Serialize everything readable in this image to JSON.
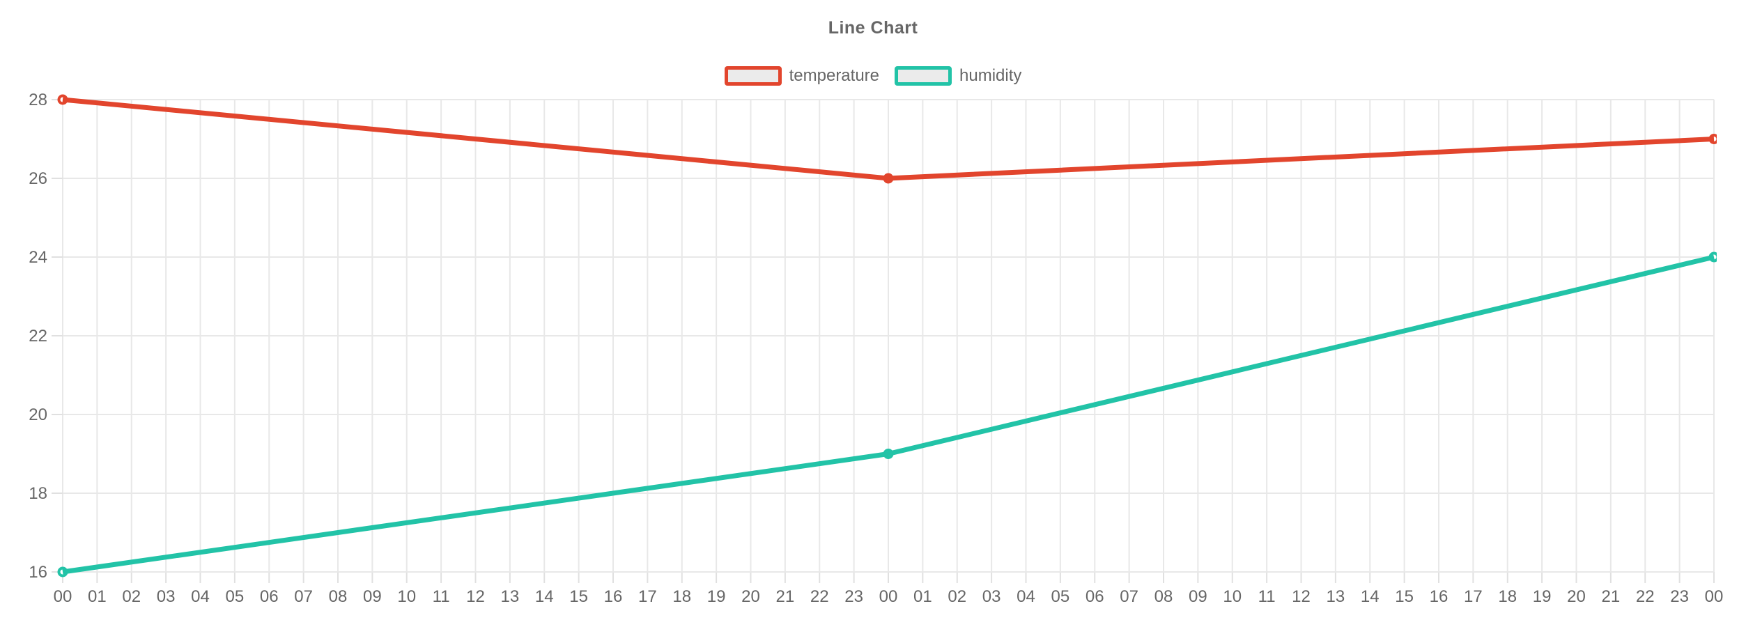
{
  "chart_data": {
    "type": "line",
    "title": "Line Chart",
    "xlabel": "",
    "ylabel": "",
    "x_labels": [
      "00",
      "01",
      "02",
      "03",
      "04",
      "05",
      "06",
      "07",
      "08",
      "09",
      "10",
      "11",
      "12",
      "13",
      "14",
      "15",
      "16",
      "17",
      "18",
      "19",
      "20",
      "21",
      "22",
      "23",
      "00",
      "01",
      "02",
      "03",
      "04",
      "05",
      "06",
      "07",
      "08",
      "09",
      "10",
      "11",
      "12",
      "13",
      "14",
      "15",
      "16",
      "17",
      "18",
      "19",
      "20",
      "21",
      "22",
      "23",
      "00"
    ],
    "y_ticks": [
      16,
      18,
      20,
      22,
      24,
      26,
      28
    ],
    "ylim": [
      16,
      28
    ],
    "grid": true,
    "legend_position": "top",
    "series": [
      {
        "name": "temperature",
        "color": "#e2452d",
        "points": [
          [
            0,
            28
          ],
          [
            24,
            26
          ],
          [
            48,
            27
          ]
        ]
      },
      {
        "name": "humidity",
        "color": "#22c3a7",
        "points": [
          [
            0,
            16
          ],
          [
            24,
            19
          ],
          [
            48,
            24
          ]
        ]
      }
    ],
    "colors": {
      "grid": "#e8e8e8",
      "tick": "#e0e0e0",
      "text": "#666666",
      "legend_swatch_fill": "#ebebeb",
      "marker_fill": "#ffffff",
      "background": "#ffffff"
    }
  }
}
